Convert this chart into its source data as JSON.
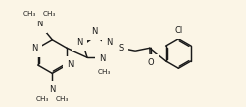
{
  "bg_color": "#fbf5e6",
  "line_color": "#1a1a1a",
  "text_color": "#1a1a1a",
  "lw": 1.05,
  "fs": 6.0,
  "fs_me": 5.2,
  "figsize": [
    2.46,
    1.07
  ],
  "dpi": 100,
  "xlim": [
    -0.5,
    11.5
  ],
  "ylim": [
    0.2,
    5.2
  ]
}
